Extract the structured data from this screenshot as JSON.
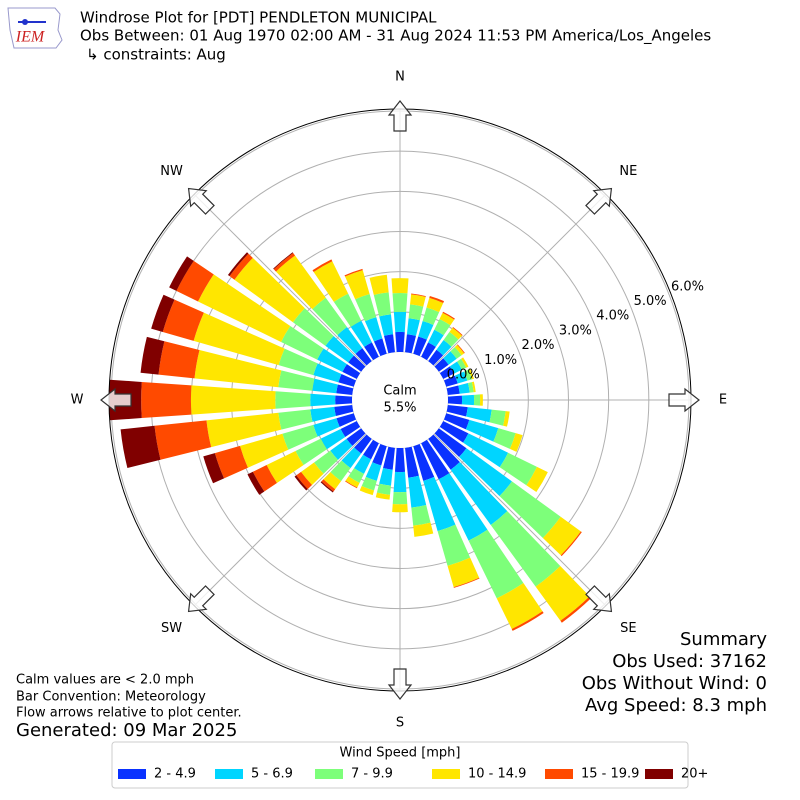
{
  "chart_data": {
    "type": "windrose",
    "title": "Windrose Plot for [PDT] PENDLETON MUNICIPAL",
    "subtitle": "Obs Between: 01 Aug 1970 02:00 AM - 31 Aug 2024 11:53 PM America/Los_Angeles",
    "constraints": "↳ constraints: Aug",
    "logo": "IEM",
    "direction_labels": [
      "N",
      "NE",
      "E",
      "SE",
      "S",
      "SW",
      "W",
      "NW"
    ],
    "calm_label": "Calm",
    "calm_text": "5.5%",
    "ylim": [
      0,
      6.05
    ],
    "yticks": [
      {
        "value": 0,
        "label": "0.0%"
      },
      {
        "value": 1,
        "label": "1.0%"
      },
      {
        "value": 2,
        "label": "2.0%"
      },
      {
        "value": 3,
        "label": "3.0%"
      },
      {
        "value": 4,
        "label": "4.0%"
      },
      {
        "value": 5,
        "label": "5.0%"
      },
      {
        "value": 6,
        "label": "6.0%"
      }
    ],
    "grid": true,
    "legend_title": "Wind Speed [mph]",
    "series": [
      {
        "name": "2 - 4.9",
        "color": "#0a32ff",
        "values": [
          0.5,
          0.45,
          0.45,
          0.4,
          0.35,
          0.3,
          0.3,
          0.3,
          0.3,
          0.35,
          0.5,
          0.6,
          0.7,
          0.85,
          0.95,
          1.0,
          0.9,
          0.75,
          0.6,
          0.55,
          0.5,
          0.45,
          0.45,
          0.45,
          0.45,
          0.45,
          0.45,
          0.42,
          0.4,
          0.4,
          0.4,
          0.4,
          0.4,
          0.4,
          0.4,
          0.45
        ]
      },
      {
        "name": "5 - 6.9",
        "color": "#00d5ff",
        "values": [
          0.5,
          0.4,
          0.4,
          0.35,
          0.3,
          0.25,
          0.22,
          0.25,
          0.25,
          0.3,
          0.6,
          0.75,
          1.1,
          1.4,
          1.7,
          1.7,
          1.3,
          0.75,
          0.5,
          0.4,
          0.4,
          0.4,
          0.45,
          0.5,
          0.55,
          0.6,
          0.6,
          0.62,
          0.6,
          0.65,
          0.7,
          0.7,
          0.65,
          0.6,
          0.55,
          0.5
        ]
      },
      {
        "name": "7 - 9.9",
        "color": "#7dff7a",
        "values": [
          0.47,
          0.35,
          0.35,
          0.3,
          0.25,
          0.15,
          0.12,
          0.12,
          0.1,
          0.15,
          0.35,
          0.45,
          0.8,
          1.5,
          1.9,
          1.6,
          0.9,
          0.45,
          0.3,
          0.23,
          0.25,
          0.25,
          0.4,
          0.5,
          0.7,
          0.8,
          0.8,
          0.87,
          0.85,
          0.9,
          1.0,
          1.0,
          0.9,
          0.75,
          0.6,
          0.55
        ]
      },
      {
        "name": "10 - 14.9",
        "color": "#ffe600",
        "values": [
          0.37,
          0.25,
          0.25,
          0.17,
          0.13,
          0.08,
          0.06,
          0.05,
          0.05,
          0.07,
          0.1,
          0.18,
          0.3,
          0.62,
          1.05,
          0.85,
          0.55,
          0.28,
          0.2,
          0.12,
          0.12,
          0.13,
          0.25,
          0.4,
          0.8,
          1.1,
          1.8,
          2.1,
          2.1,
          2.2,
          2.3,
          1.8,
          1.3,
          0.9,
          0.62,
          0.44
        ]
      },
      {
        "name": "15 - 19.9",
        "color": "#ff4a00",
        "values": [
          0,
          0.02,
          0.05,
          0.03,
          0.02,
          0.02,
          0,
          0,
          0,
          0,
          0,
          0,
          0,
          0.03,
          0.06,
          0.05,
          0.02,
          0,
          0,
          0,
          0,
          0.02,
          0.07,
          0.15,
          0.38,
          0.65,
          1.3,
          1.24,
          0.9,
          0.8,
          0.6,
          0.15,
          0.08,
          0.05,
          0.03,
          0
        ]
      },
      {
        "name": "20+",
        "color": "#800000",
        "values": [
          0,
          0,
          0,
          0,
          0,
          0,
          0,
          0,
          0,
          0,
          0,
          0,
          0,
          0,
          0,
          0,
          0,
          0,
          0,
          0,
          0,
          0,
          0.03,
          0.05,
          0.15,
          0.3,
          0.85,
          0.8,
          0.45,
          0.3,
          0.2,
          0.05,
          0.02,
          0,
          0,
          0
        ]
      }
    ],
    "summary": [
      "Summary",
      "Obs Used: 37162",
      "Obs Without Wind: 0",
      "Avg Speed: 8.3 mph"
    ],
    "notes": [
      "Calm values are < 2.0 mph",
      "Bar Convention: Meteorology",
      "Flow arrows relative to plot center."
    ],
    "generated": "Generated: 09 Mar 2025"
  }
}
